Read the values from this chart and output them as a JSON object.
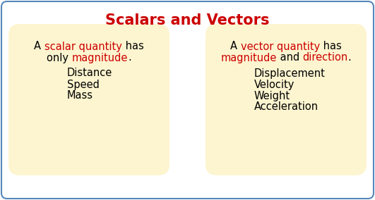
{
  "title": "Scalars and Vectors",
  "title_color": "#cc0000",
  "title_fontsize": 15,
  "title_fontweight": "bold",
  "bg_color": "#ffffff",
  "border_color": "#5588bb",
  "box_bg_color": "#fdf5d0",
  "left_box": {
    "line1_parts": [
      {
        "text": "A ",
        "color": "#000000",
        "bold": false
      },
      {
        "text": "scalar quantity",
        "color": "#cc0000",
        "bold": false
      },
      {
        "text": " has",
        "color": "#000000",
        "bold": false
      }
    ],
    "line2_parts": [
      {
        "text": "only ",
        "color": "#000000",
        "bold": false
      },
      {
        "text": "magnitude",
        "color": "#cc0000",
        "bold": false
      },
      {
        "text": ".",
        "color": "#000000",
        "bold": false
      }
    ],
    "items": [
      "Distance",
      "Speed",
      "Mass"
    ],
    "item_color": "#000000",
    "item_fontsize": 10.5,
    "desc_fontsize": 10.5
  },
  "right_box": {
    "line1_parts": [
      {
        "text": "A ",
        "color": "#000000",
        "bold": false
      },
      {
        "text": "vector quantity",
        "color": "#cc0000",
        "bold": false
      },
      {
        "text": " has",
        "color": "#000000",
        "bold": false
      }
    ],
    "line2_parts": [
      {
        "text": "magnitude",
        "color": "#cc0000",
        "bold": false
      },
      {
        "text": " and ",
        "color": "#000000",
        "bold": false
      },
      {
        "text": "direction",
        "color": "#cc0000",
        "bold": false
      },
      {
        "text": ".",
        "color": "#000000",
        "bold": false
      }
    ],
    "items": [
      "Displacement",
      "Velocity",
      "Weight",
      "Acceleration"
    ],
    "item_color": "#000000",
    "item_fontsize": 10.5,
    "desc_fontsize": 10.5
  }
}
